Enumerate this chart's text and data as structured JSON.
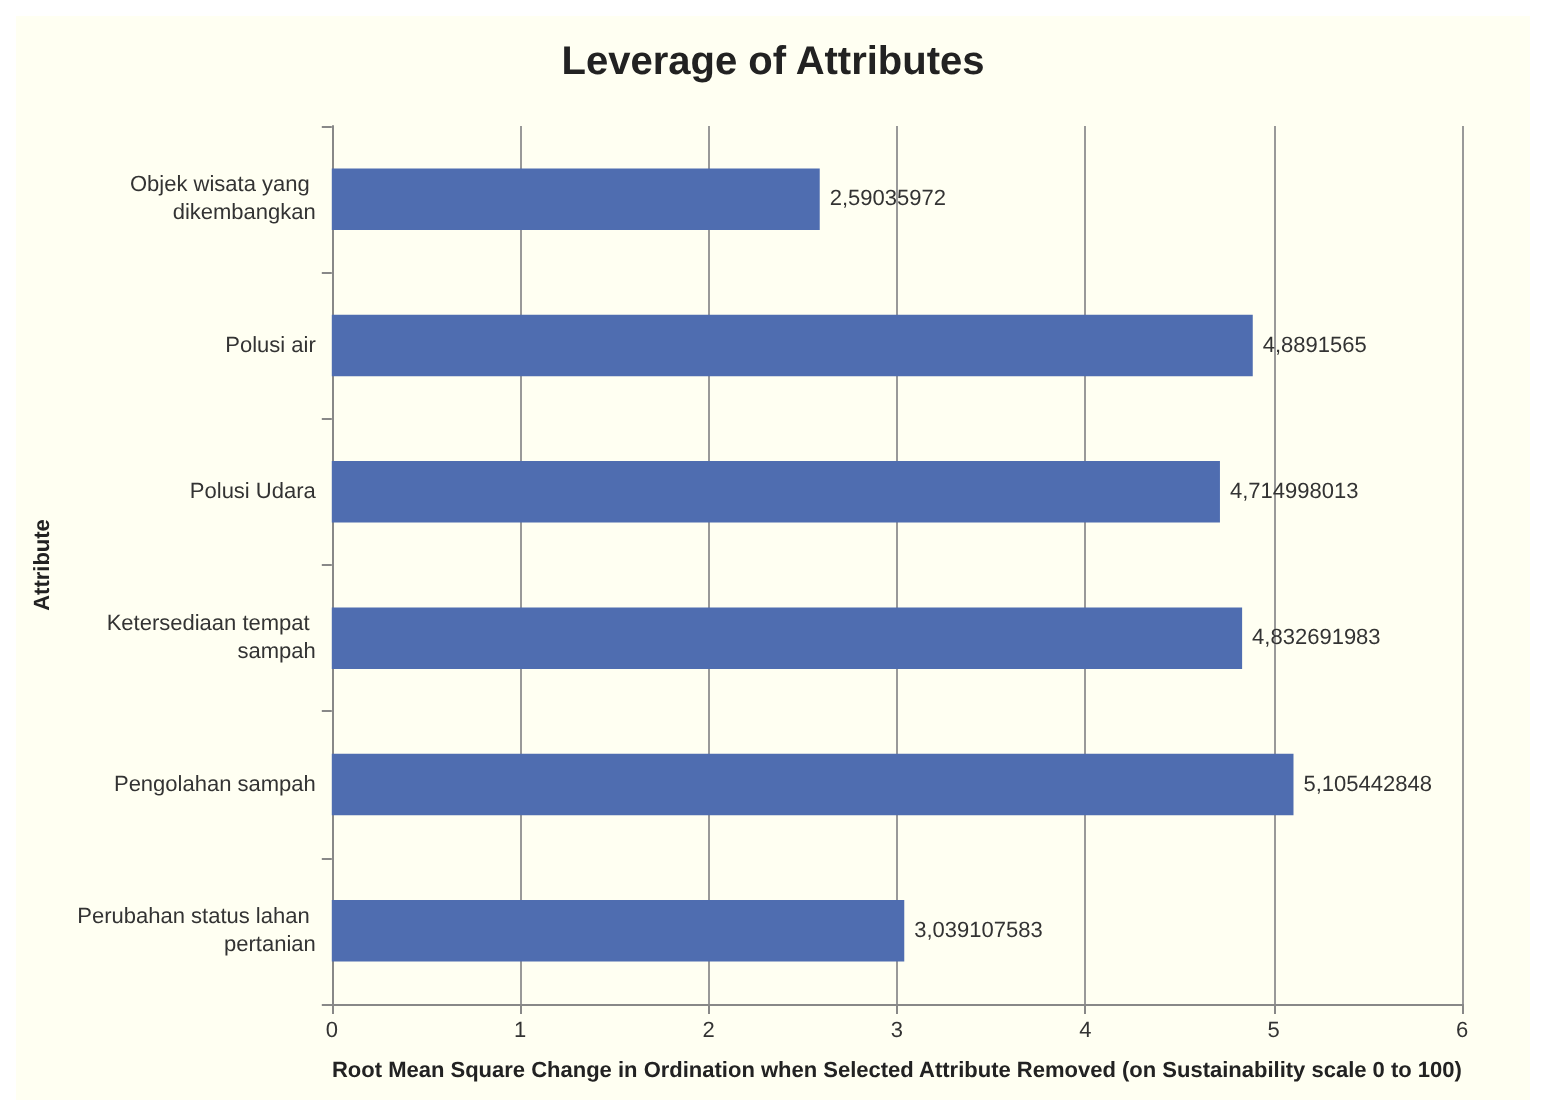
{
  "chart_data": {
    "type": "bar",
    "orientation": "horizontal",
    "title": "Leverage of Attributes",
    "xlabel": "Root Mean Square Change in Ordination when Selected Attribute Removed (on Sustainability scale 0 to 100)",
    "ylabel": "Attribute",
    "categories": [
      "Objek wisata yang dikembangkan",
      "Polusi air",
      "Polusi Udara",
      "Ketersediaan tempat sampah",
      "Pengolahan sampah",
      "Perubahan status lahan pertanian"
    ],
    "values": [
      2.59035972,
      4.8891565,
      4.714998013,
      4.832691983,
      5.105442848,
      3.039107583
    ],
    "value_labels": [
      "2,59035972",
      "4,8891565",
      "4,714998013",
      "4,832691983",
      "5,105442848",
      "3,039107583"
    ],
    "color": "#4f6db0",
    "xlim": [
      0,
      6
    ],
    "xticks": [
      0,
      1,
      2,
      3,
      4,
      5,
      6
    ],
    "grid": "x"
  }
}
